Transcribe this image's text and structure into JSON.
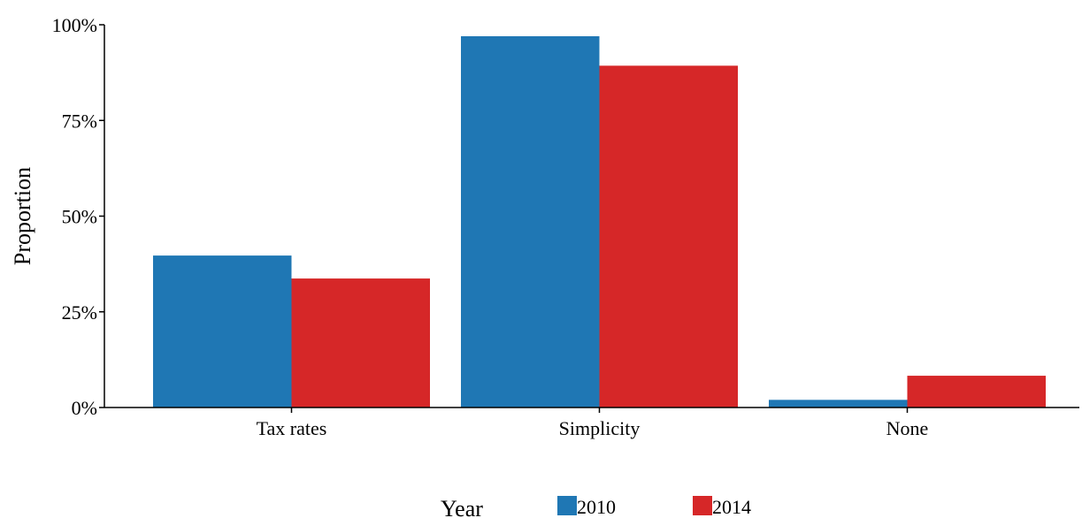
{
  "chart_data": {
    "type": "bar",
    "categories": [
      "Tax rates",
      "Simplicity",
      "None"
    ],
    "series": [
      {
        "name": "2010",
        "values": [
          0.397,
          0.97,
          0.02
        ],
        "color": "#1f77b4"
      },
      {
        "name": "2014",
        "values": [
          0.337,
          0.893,
          0.083
        ],
        "color": "#d62728"
      }
    ],
    "ylabel": "Proportion",
    "xlabel": "",
    "ylim": [
      0,
      1
    ],
    "yticks": [
      0,
      0.25,
      0.5,
      0.75,
      1
    ],
    "ytick_labels": [
      "0%",
      "25%",
      "50%",
      "75%",
      "100%"
    ],
    "legend": {
      "title": "Year",
      "placement": "bottom"
    },
    "grid": false
  }
}
